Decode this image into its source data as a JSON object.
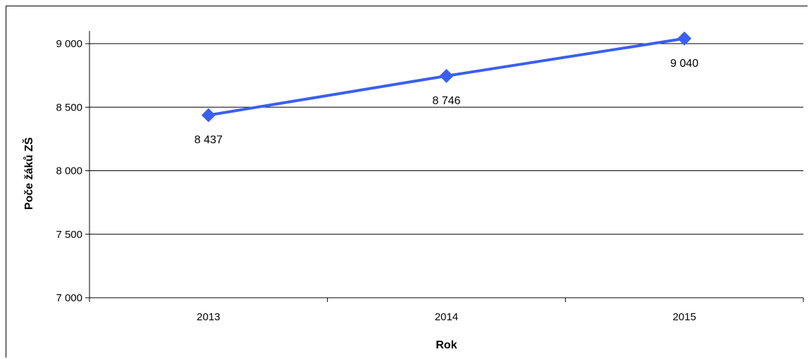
{
  "chart_data": {
    "type": "line",
    "categories": [
      "2013",
      "2014",
      "2015"
    ],
    "series": [
      {
        "values": [
          8437,
          8746,
          9040
        ],
        "data_labels": [
          "8 437",
          "8 746",
          "9 040"
        ],
        "color": "#3a5ff0",
        "marker": "diamond"
      }
    ],
    "xlabel": "Rok",
    "ylabel": "Poče žáků ZŠ",
    "ylim": [
      7000,
      9000
    ],
    "yticks": [
      7000,
      7500,
      8000,
      8500,
      9000
    ],
    "ytick_labels": [
      "7 000",
      "7 500",
      "8 000",
      "8 500",
      "9 000"
    ],
    "grid": "horizontal",
    "legend": "none"
  }
}
